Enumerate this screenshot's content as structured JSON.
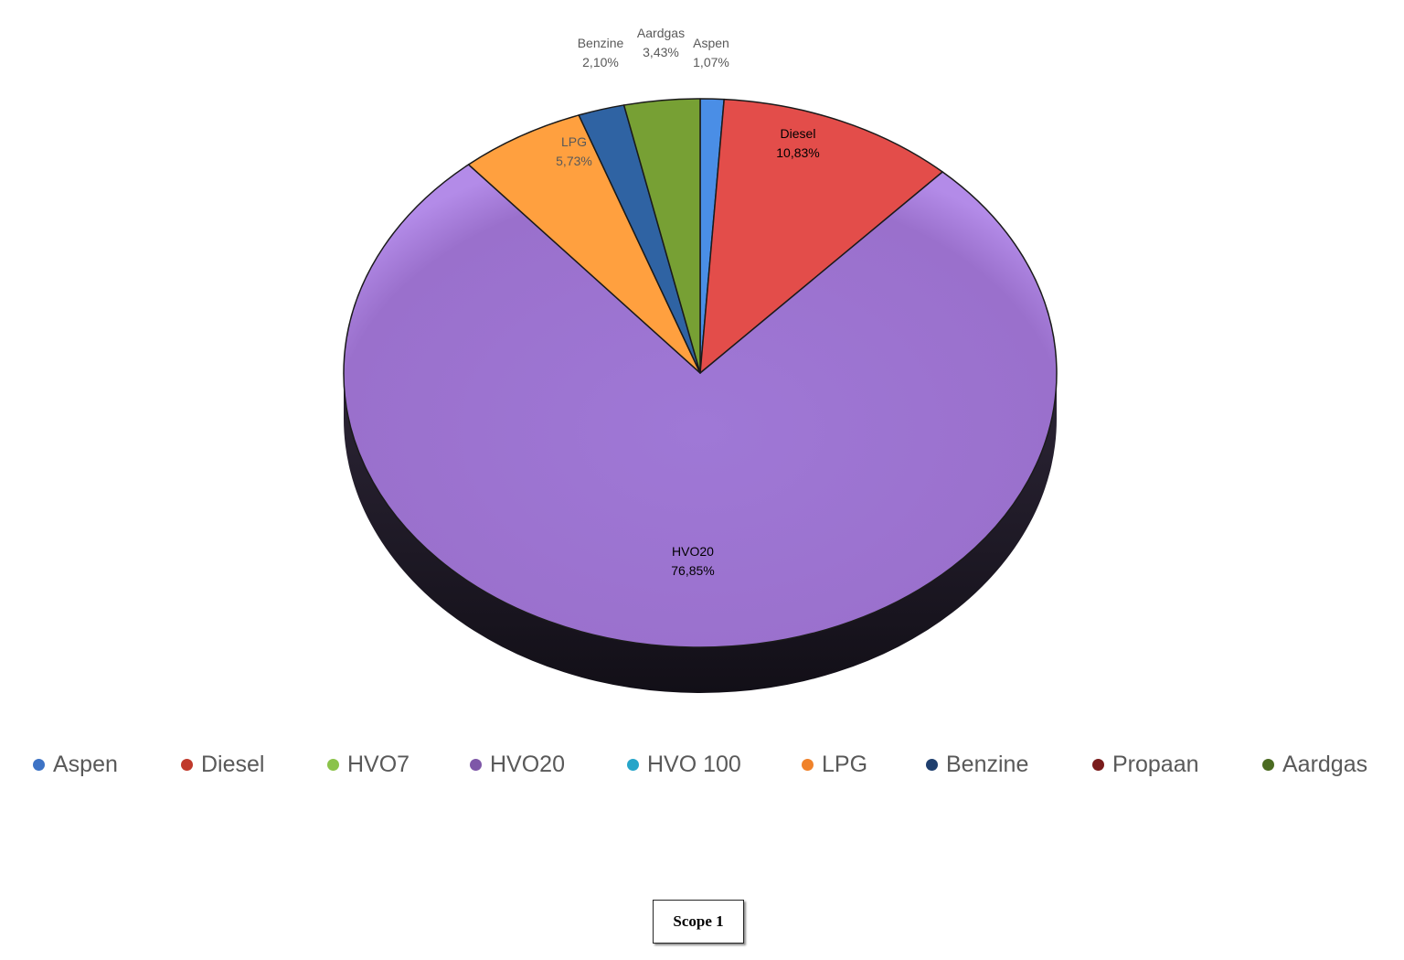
{
  "chart_data": {
    "type": "pie",
    "style": "3d",
    "slices": [
      {
        "label": "Aspen",
        "value": 1.07,
        "display": "1,07%",
        "color": "#4a8ee6"
      },
      {
        "label": "Diesel",
        "value": 10.83,
        "display": "10,83%",
        "color": "#e34d4a"
      },
      {
        "label": "HVO20",
        "value": 76.85,
        "display": "76,85%",
        "color": "#9a71ca"
      },
      {
        "label": "LPG",
        "value": 5.73,
        "display": "5,73%",
        "color": "#ffa03f"
      },
      {
        "label": "Benzine",
        "value": 2.1,
        "display": "2,10%",
        "color": "#2f63a3"
      },
      {
        "label": "Aardgas",
        "value": 3.43,
        "display": "3,43%",
        "color": "#77a034"
      }
    ],
    "legend": {
      "position": "bottom",
      "entries": [
        {
          "label": "Aspen",
          "color": "#3d73c5"
        },
        {
          "label": "Diesel",
          "color": "#c0392b"
        },
        {
          "label": "HVO7",
          "color": "#8bc34a"
        },
        {
          "label": "HVO20",
          "color": "#7e57a8"
        },
        {
          "label": "HVO 100",
          "color": "#26a5c9"
        },
        {
          "label": "LPG",
          "color": "#f0822a"
        },
        {
          "label": "Benzine",
          "color": "#1f3f6e"
        },
        {
          "label": "Propaan",
          "color": "#7a1c1c"
        },
        {
          "label": "Aardgas",
          "color": "#4b6b22"
        }
      ]
    }
  },
  "caption": "Scope 1"
}
